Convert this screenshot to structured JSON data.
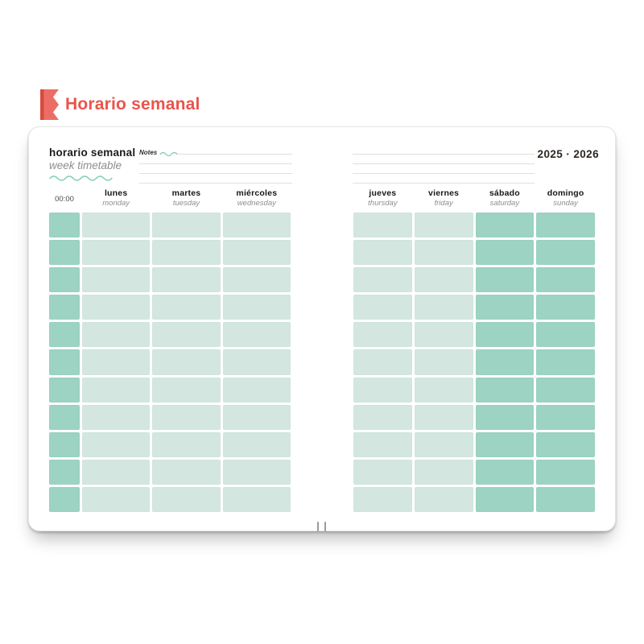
{
  "header": {
    "title": "Horario semanal"
  },
  "notebook": {
    "left_page": {
      "title_es": "horario semanal",
      "title_en": "week timetable",
      "time_label": "00:00",
      "days": [
        {
          "es": "lunes",
          "en": "monday",
          "weekend": false
        },
        {
          "es": "martes",
          "en": "tuesday",
          "weekend": false
        },
        {
          "es": "miércoles",
          "en": "wednesday",
          "weekend": false
        }
      ]
    },
    "right_page": {
      "year_label": "2025 · 2026",
      "days": [
        {
          "es": "jueves",
          "en": "thursday",
          "weekend": false
        },
        {
          "es": "viernes",
          "en": "friday",
          "weekend": false
        },
        {
          "es": "sábado",
          "en": "saturday",
          "weekend": true
        },
        {
          "es": "domingo",
          "en": "sunday",
          "weekend": true
        }
      ]
    },
    "notes": {
      "label": "Notes",
      "line_count": 4
    },
    "grid": {
      "rows": 11
    },
    "colors": {
      "accent_coral": "#e9544a",
      "accent_coral_dark": "#d84a3e",
      "cell_light": "#d3e7e0",
      "cell_dark": "#9dd3c3",
      "wave_teal": "#82cdbb",
      "note_line_gray": "#e3e0d9"
    }
  }
}
